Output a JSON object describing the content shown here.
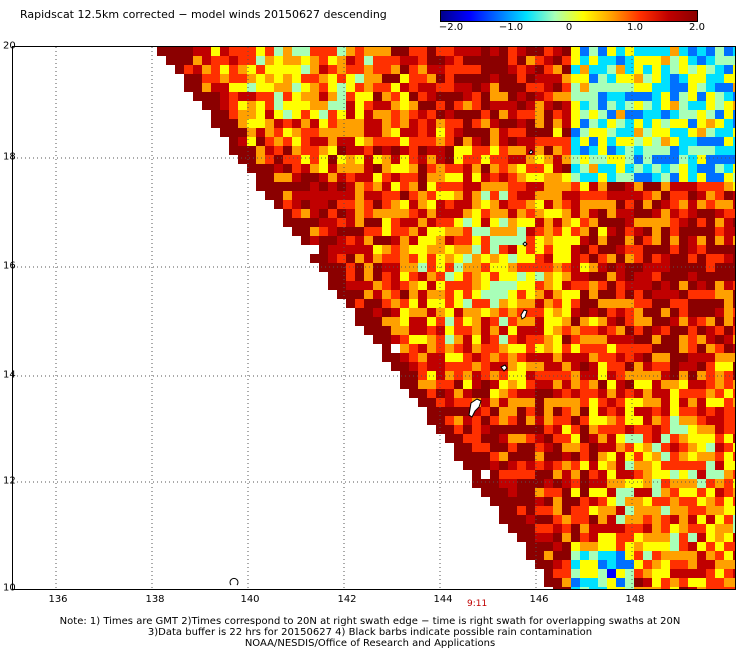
{
  "title": "Rapidscat 12.5km corrected − model winds 20150627 descending",
  "colorbar": {
    "labels": [
      "−2.0",
      "−1.0",
      "0",
      "1.0",
      "2.0"
    ],
    "min": -2.0,
    "max": 2.0,
    "colors": [
      "#00008b",
      "#0000ff",
      "#0070ff",
      "#00e0ff",
      "#a8ffb8",
      "#ffff00",
      "#ffa000",
      "#ff3000",
      "#c00000",
      "#8b0000"
    ]
  },
  "axes": {
    "lat_labels": [
      "20",
      "18",
      "16",
      "14",
      "12",
      "10"
    ],
    "lon_labels": [
      "136",
      "138",
      "140",
      "142",
      "144",
      "146",
      "148"
    ],
    "lat_range": [
      10,
      20
    ],
    "lon_range": [
      135,
      150
    ],
    "grid": "dotted"
  },
  "time_label": "9:11",
  "notes": [
    "Note: 1) Times are GMT 2)Times correspond to 20N at right swath edge − time is right swath for overlapping swaths at 20N",
    "3)Data buffer is 22 hrs for 20150627 4) Black barbs indicate possible rain contamination",
    "NOAA/NESDIS/Office of Research and Applications"
  ]
}
